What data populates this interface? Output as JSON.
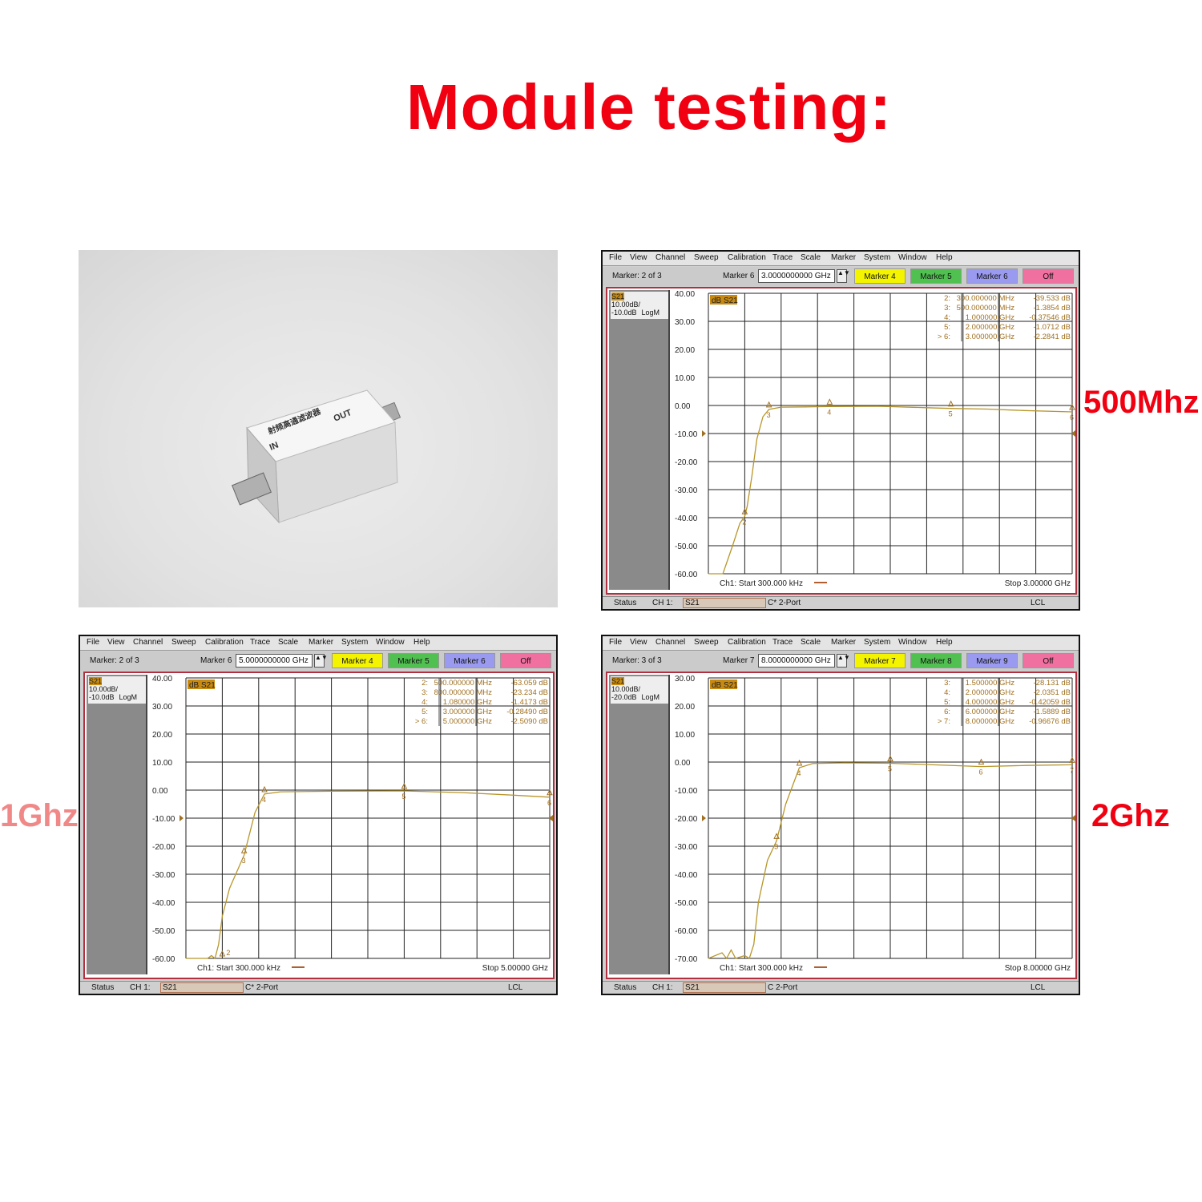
{
  "title": "Module testing:",
  "labels": {
    "p500": "500Mhz",
    "p1g": "1Ghz",
    "p2g": "2Ghz"
  },
  "colors": {
    "title": "#f00010",
    "label_1ghz": "#f08888",
    "trace": "#b8962a",
    "marker_text": "#a07020",
    "frame": "#b03040"
  },
  "photo": {
    "module_text": "射频高通滤波器",
    "in_label": "IN",
    "out_label": "OUT"
  },
  "menu": [
    "File",
    "View",
    "Channel",
    "Sweep",
    "Calibration",
    "Trace",
    "Scale",
    "Marker",
    "System",
    "Window",
    "Help"
  ],
  "status_bar": {
    "status": "Status",
    "channel": "CH 1:",
    "param": "S21",
    "lcl": "LCL"
  },
  "panels": [
    {
      "id": "p500",
      "marker_of": "Marker: 2 of 3",
      "active_marker": "Marker 6",
      "active_value": "3.0000000000 GHz",
      "buttons": [
        "Marker 4",
        "Marker 5",
        "Marker 6",
        "Off"
      ],
      "cal": "C* 2-Port",
      "trace_label": "S21",
      "scale": "10.00dB/",
      "ref": "-10.0dB",
      "format": "LogM",
      "trace_tag": "dB S21",
      "chart_data": {
        "type": "line",
        "xlim_ghz": [
          0.0003,
          3
        ],
        "ylim": [
          -60,
          40
        ],
        "ref_level": -10,
        "yticks": [
          "40.00",
          "30.00",
          "20.00",
          "10.00",
          "0.00",
          "-10.00",
          "-20.00",
          "-30.00",
          "-40.00",
          "-50.00",
          "-60.00"
        ],
        "start": "Ch1: Start  300.000 kHz",
        "stop": "Stop  3.00000 GHz",
        "grid": true,
        "trace": [
          [
            0.0003,
            -60
          ],
          [
            0.12,
            -60
          ],
          [
            0.2,
            -50
          ],
          [
            0.26,
            -42
          ],
          [
            0.3,
            -39.5
          ],
          [
            0.32,
            -36
          ],
          [
            0.36,
            -25
          ],
          [
            0.4,
            -12
          ],
          [
            0.45,
            -4
          ],
          [
            0.5,
            -1.4
          ],
          [
            0.6,
            -0.6
          ],
          [
            0.8,
            -0.5
          ],
          [
            1.0,
            -0.38
          ],
          [
            1.4,
            -0.3
          ],
          [
            1.8,
            -0.8
          ],
          [
            2.0,
            -1.07
          ],
          [
            2.3,
            -1.3
          ],
          [
            2.6,
            -1.8
          ],
          [
            3.0,
            -2.28
          ]
        ],
        "markers": [
          {
            "n": "2",
            "f": "300.000000 MHz",
            "db": "-39.533 dB",
            "x": 0.3,
            "y": -39.5
          },
          {
            "n": "3",
            "f": "500.000000 MHz",
            "db": "-1.3854 dB",
            "x": 0.5,
            "y": -1.39
          },
          {
            "n": "4",
            "f": "1.000000 GHz",
            "db": "-0.37546 dB",
            "x": 1.0,
            "y": -0.38
          },
          {
            "n": "5",
            "f": "2.000000 GHz",
            "db": "-1.0712 dB",
            "x": 2.0,
            "y": -1.07
          },
          {
            "n": "> 6",
            "f": "3.000000 GHz",
            "db": "-2.2841 dB",
            "x": 3.0,
            "y": -2.28
          }
        ]
      }
    },
    {
      "id": "p1g",
      "marker_of": "Marker: 2 of 3",
      "active_marker": "Marker 6",
      "active_value": "5.0000000000 GHz",
      "buttons": [
        "Marker 4",
        "Marker 5",
        "Marker 6",
        "Off"
      ],
      "cal": "C* 2-Port",
      "trace_label": "S21",
      "scale": "10.00dB/",
      "ref": "-10.0dB",
      "format": "LogM",
      "trace_tag": "dB S21",
      "chart_data": {
        "type": "line",
        "xlim_ghz": [
          0.0003,
          5
        ],
        "ylim": [
          -60,
          40
        ],
        "ref_level": -10,
        "yticks": [
          "40.00",
          "30.00",
          "20.00",
          "10.00",
          "0.00",
          "-10.00",
          "-20.00",
          "-30.00",
          "-40.00",
          "-50.00",
          "-60.00"
        ],
        "start": "Ch1: Start  300.000 kHz",
        "stop": "Stop  5.00000 GHz",
        "grid": true,
        "trace": [
          [
            0.0003,
            -60
          ],
          [
            0.3,
            -60
          ],
          [
            0.35,
            -59
          ],
          [
            0.4,
            -60
          ],
          [
            0.45,
            -55
          ],
          [
            0.5,
            -45
          ],
          [
            0.6,
            -35
          ],
          [
            0.8,
            -23.2
          ],
          [
            0.95,
            -8
          ],
          [
            1.08,
            -1.4
          ],
          [
            1.3,
            -0.6
          ],
          [
            2.0,
            -0.4
          ],
          [
            3.0,
            -0.28
          ],
          [
            3.8,
            -0.9
          ],
          [
            4.5,
            -1.8
          ],
          [
            5.0,
            -2.5
          ]
        ],
        "markers": [
          {
            "n": "2",
            "f": "500.000000 MHz",
            "db": "-63.059 dB",
            "x": 0.5,
            "y": -60
          },
          {
            "n": "3",
            "f": "800.000000 MHz",
            "db": "-23.234 dB",
            "x": 0.8,
            "y": -23.2
          },
          {
            "n": "4",
            "f": "1.080000 GHz",
            "db": "-1.4173 dB",
            "x": 1.08,
            "y": -1.42
          },
          {
            "n": "5",
            "f": "3.000000 GHz",
            "db": "-0.28490 dB",
            "x": 3.0,
            "y": -0.28
          },
          {
            "n": "> 6",
            "f": "5.000000 GHz",
            "db": "-2.5090 dB",
            "x": 5.0,
            "y": -2.5
          }
        ]
      }
    },
    {
      "id": "p2g",
      "marker_of": "Marker: 3 of 3",
      "active_marker": "Marker 7",
      "active_value": "8.0000000000 GHz",
      "buttons": [
        "Marker 7",
        "Marker 8",
        "Marker 9",
        "Off"
      ],
      "cal": "C  2-Port",
      "trace_label": "S21",
      "scale": "10.00dB/",
      "ref": "-20.0dB",
      "format": "LogM",
      "trace_tag": "dB S21",
      "chart_data": {
        "type": "line",
        "xlim_ghz": [
          0.0003,
          8
        ],
        "ylim": [
          -70,
          30
        ],
        "ref_level": -20,
        "yticks": [
          "30.00",
          "20.00",
          "10.00",
          "0.00",
          "-10.00",
          "-20.00",
          "-30.00",
          "-40.00",
          "-50.00",
          "-60.00",
          "-70.00"
        ],
        "start": "Ch1: Start  300.000 kHz",
        "stop": "Stop  8.00000 GHz",
        "grid": true,
        "trace": [
          [
            0.0003,
            -70
          ],
          [
            0.3,
            -68
          ],
          [
            0.4,
            -70
          ],
          [
            0.5,
            -67
          ],
          [
            0.6,
            -70
          ],
          [
            0.8,
            -69
          ],
          [
            0.9,
            -70
          ],
          [
            1.0,
            -65
          ],
          [
            1.1,
            -50
          ],
          [
            1.3,
            -35
          ],
          [
            1.5,
            -28.1
          ],
          [
            1.7,
            -15
          ],
          [
            2.0,
            -2.0
          ],
          [
            2.3,
            -0.5
          ],
          [
            3.0,
            -0.3
          ],
          [
            4.0,
            -0.42
          ],
          [
            5.0,
            -1.0
          ],
          [
            6.0,
            -1.59
          ],
          [
            7.0,
            -1.2
          ],
          [
            8.0,
            -0.97
          ]
        ],
        "markers": [
          {
            "n": "3",
            "f": "1.500000 GHz",
            "db": "-28.131 dB",
            "x": 1.5,
            "y": -28.1
          },
          {
            "n": "4",
            "f": "2.000000 GHz",
            "db": "-2.0351 dB",
            "x": 2.0,
            "y": -2.0
          },
          {
            "n": "5",
            "f": "4.000000 GHz",
            "db": "-0.42059 dB",
            "x": 4.0,
            "y": -0.42
          },
          {
            "n": "6",
            "f": "6.000000 GHz",
            "db": "-1.5889 dB",
            "x": 6.0,
            "y": -1.59
          },
          {
            "n": "> 7",
            "f": "8.000000 GHz",
            "db": "-0.96676 dB",
            "x": 8.0,
            "y": -0.97
          }
        ]
      }
    }
  ]
}
